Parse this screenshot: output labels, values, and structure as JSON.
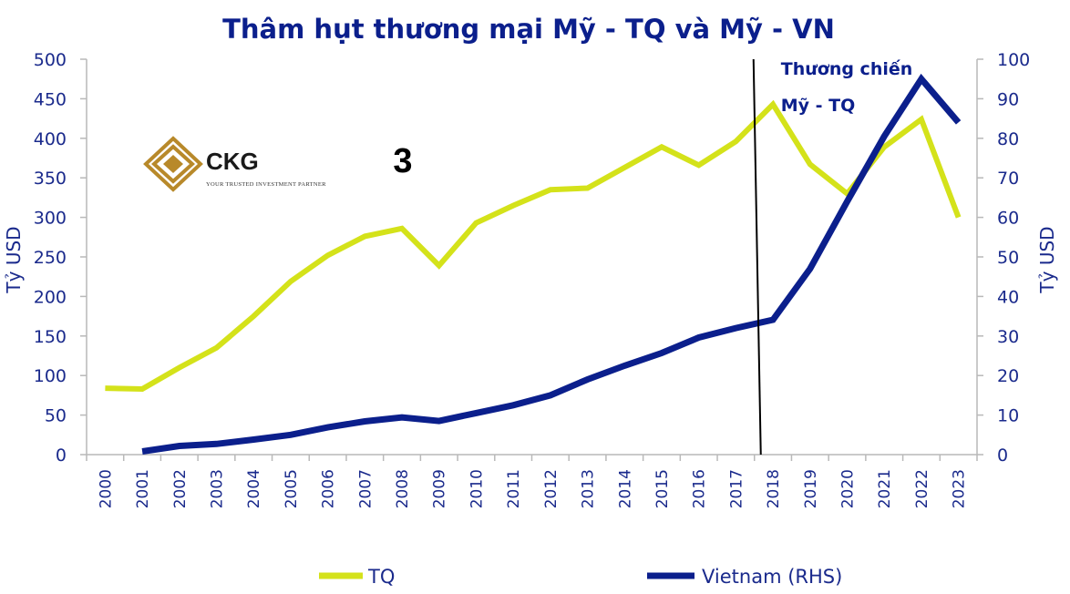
{
  "chart_data": {
    "type": "line",
    "title": "Thâm hụt thương mại Mỹ - TQ và Mỹ - VN",
    "categories": [
      "2000",
      "2001",
      "2002",
      "2003",
      "2004",
      "2005",
      "2006",
      "2007",
      "2008",
      "2009",
      "2010",
      "2011",
      "2012",
      "2013",
      "2014",
      "2015",
      "2016",
      "2017",
      "2018",
      "2019",
      "2020",
      "2021",
      "2022",
      "2023"
    ],
    "ylabel_left": "Tỷ USD",
    "ylabel_right": "Tỷ USD",
    "ylim_left": [
      0,
      500
    ],
    "ylim_right": [
      0,
      100
    ],
    "yticks_left": [
      "0",
      "50",
      "100",
      "150",
      "200",
      "250",
      "300",
      "350",
      "400",
      "450",
      "500"
    ],
    "yticks_right": [
      "0",
      "10",
      "20",
      "30",
      "40",
      "50",
      "60",
      "70",
      "80",
      "90",
      "100"
    ],
    "series": [
      {
        "name": "TQ",
        "axis": "left",
        "color": "#d4e21a",
        "values": [
          84,
          83,
          110,
          135,
          175,
          219,
          252,
          276,
          286,
          239,
          293,
          315,
          335,
          337,
          363,
          389,
          366,
          396,
          443,
          367,
          330,
          389,
          424,
          300
        ]
      },
      {
        "name": "Vietnam (RHS)",
        "axis": "right",
        "color": "#0b1f8c",
        "values": [
          null,
          0.8,
          2.2,
          2.7,
          3.8,
          5.0,
          6.9,
          8.4,
          9.4,
          8.5,
          10.5,
          12.5,
          15.0,
          19.0,
          22.5,
          25.7,
          29.6,
          32.0,
          34.1,
          47.0,
          64.0,
          80.5,
          95.0,
          84.0
        ]
      }
    ],
    "annotation": {
      "line1": "Thương chiến",
      "line2": "Mỹ - TQ",
      "at_between": [
        "2017",
        "2018"
      ]
    },
    "legend_placement": "bottom",
    "grid": false
  },
  "logo": {
    "name": "CKG",
    "tagline": "YOUR TRUSTED INVESTMENT PARTNER",
    "color": "#b8892a"
  },
  "badge_number": "3",
  "colors": {
    "axis_text": "#1a2a8c",
    "title": "#0b1f8c"
  }
}
